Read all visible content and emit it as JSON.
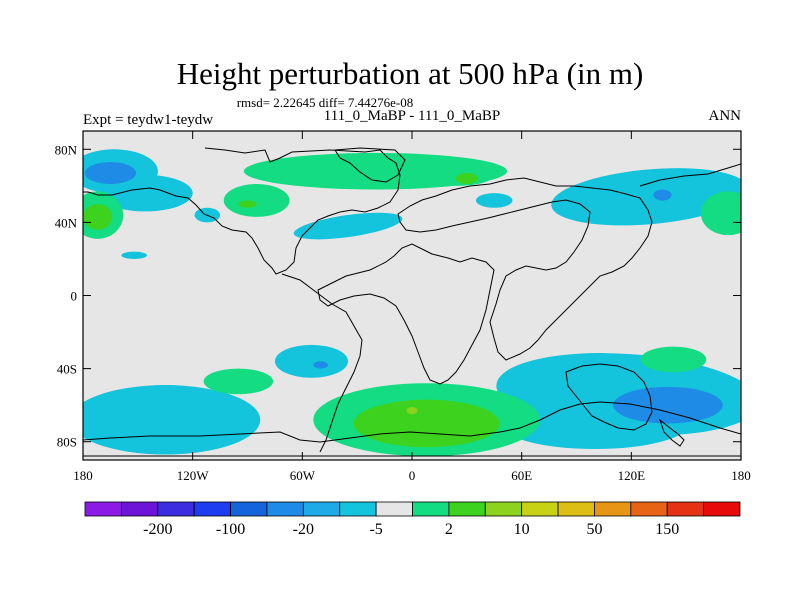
{
  "chart_data": {
    "type": "heatmap",
    "title": "Height perturbation at 500 hPa (in m)",
    "stats": "rmsd= 2.22645 diff= 7.44276e-08",
    "case_label": "111_0_MaBP - 111_0_MaBP",
    "experiment": "Expt = teydw1-teydw",
    "season": "ANN",
    "xlim": [
      -180,
      180
    ],
    "ylim": [
      -90,
      90
    ],
    "x_ticks": [
      {
        "value": -180,
        "label": "180"
      },
      {
        "value": -120,
        "label": "120W"
      },
      {
        "value": -60,
        "label": "60W"
      },
      {
        "value": 0,
        "label": "0"
      },
      {
        "value": 60,
        "label": "60E"
      },
      {
        "value": 120,
        "label": "120E"
      },
      {
        "value": 180,
        "label": "180"
      }
    ],
    "y_ticks": [
      {
        "value": 80,
        "label": "80N"
      },
      {
        "value": 40,
        "label": "40N"
      },
      {
        "value": 0,
        "label": "0"
      },
      {
        "value": -40,
        "label": "40S"
      },
      {
        "value": -80,
        "label": "80S"
      }
    ],
    "colorbar": {
      "colors": [
        "#8C1AE6",
        "#6E14D9",
        "#3C2DE0",
        "#1E3CF0",
        "#1464DC",
        "#1E8CE6",
        "#1EAAE6",
        "#14C3DC",
        "#E6E6E6",
        "#14DC82",
        "#3CD21E",
        "#8CD21E",
        "#C8D214",
        "#DCBE14",
        "#E69614",
        "#E66414",
        "#E63214",
        "#E60A0A"
      ],
      "labels": [
        "-200",
        "-100",
        "-20",
        "-5",
        "2",
        "10",
        "50",
        "150"
      ]
    },
    "regions": [
      {
        "level": "-5",
        "lon": -163,
        "lat": 68,
        "rlon": 24,
        "rlat": 12,
        "rot": 0
      },
      {
        "level": "-5",
        "lon": -146,
        "lat": 56,
        "rlon": 26,
        "rlat": 10,
        "rot": 0
      },
      {
        "level": "-5",
        "lon": -112,
        "lat": 44,
        "rlon": 7,
        "rlat": 4,
        "rot": 0
      },
      {
        "level": "-5",
        "lon": -152,
        "lat": 22,
        "rlon": 7,
        "rlat": 2,
        "rot": 0
      },
      {
        "level": "-5",
        "lon": -35,
        "lat": 38,
        "rlon": 30,
        "rlat": 6,
        "rot": -8
      },
      {
        "level": "-5",
        "lon": 45,
        "lat": 52,
        "rlon": 10,
        "rlat": 4,
        "rot": 0
      },
      {
        "level": "-5",
        "lon": 130,
        "lat": 54,
        "rlon": 54,
        "rlat": 15,
        "rot": -5
      },
      {
        "level": "-5",
        "lon": -55,
        "lat": -36,
        "rlon": 20,
        "rlat": 9,
        "rot": 0
      },
      {
        "level": "-5",
        "lon": -135,
        "lat": -68,
        "rlon": 52,
        "rlat": 19,
        "rot": 0
      },
      {
        "level": "-5",
        "lon": 118,
        "lat": -54,
        "rlon": 72,
        "rlat": 22,
        "rot": 4
      },
      {
        "level": "-5",
        "lon": 100,
        "lat": -70,
        "rlon": 52,
        "rlat": 14,
        "rot": 0
      },
      {
        "level": "-20",
        "lon": -165,
        "lat": 67,
        "rlon": 14,
        "rlat": 6,
        "rot": 0
      },
      {
        "level": "-20",
        "lon": -50,
        "lat": -38,
        "rlon": 4,
        "rlat": 2,
        "rot": 0
      },
      {
        "level": "-20",
        "lon": 140,
        "lat": -60,
        "rlon": 30,
        "rlat": 10,
        "rot": 0
      },
      {
        "level": "-20",
        "lon": 137,
        "lat": 55,
        "rlon": 5,
        "rlat": 3,
        "rot": 0
      },
      {
        "level": "2",
        "lon": -20,
        "lat": 68,
        "rlon": 72,
        "rlat": 10,
        "rot": 0
      },
      {
        "level": "2",
        "lon": -85,
        "lat": 52,
        "rlon": 18,
        "rlat": 9,
        "rot": 0
      },
      {
        "level": "2",
        "lon": 25,
        "lat": 66,
        "rlon": 20,
        "rlat": 6,
        "rot": 0
      },
      {
        "level": "2",
        "lon": -172,
        "lat": 44,
        "rlon": 14,
        "rlat": 13,
        "rot": 0
      },
      {
        "level": "2",
        "lon": 173,
        "lat": 45,
        "rlon": 15,
        "rlat": 12,
        "rot": 0
      },
      {
        "level": "2",
        "lon": -95,
        "lat": -47,
        "rlon": 19,
        "rlat": 7,
        "rot": 0
      },
      {
        "level": "2",
        "lon": 143,
        "lat": -35,
        "rlon": 18,
        "rlat": 7,
        "rot": 0
      },
      {
        "level": "2",
        "lon": 8,
        "lat": -68,
        "rlon": 62,
        "rlat": 20,
        "rot": 0
      },
      {
        "level": "10",
        "lon": -172,
        "lat": 43,
        "rlon": 8,
        "rlat": 7,
        "rot": 0
      },
      {
        "level": "10",
        "lon": 30,
        "lat": 64,
        "rlon": 6,
        "rlat": 3,
        "rot": 0
      },
      {
        "level": "10",
        "lon": -90,
        "lat": 50,
        "rlon": 5,
        "rlat": 2,
        "rot": 0
      },
      {
        "level": "10",
        "lon": 8,
        "lat": -70,
        "rlon": 40,
        "rlat": 13,
        "rot": 0
      },
      {
        "level": "50",
        "lon": 0,
        "lat": -63,
        "rlon": 3,
        "rlat": 2,
        "rot": 0
      }
    ]
  }
}
